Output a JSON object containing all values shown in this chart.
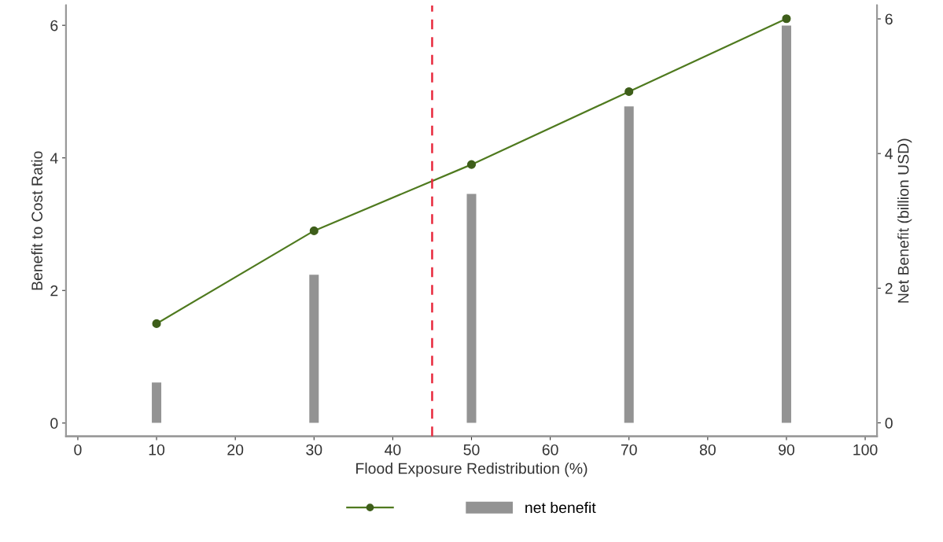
{
  "chart_data": {
    "type": "line",
    "xlabel": "Flood Exposure Redistribution (%)",
    "ylabel": "Benefit to Cost Ratio",
    "y2label": "Net Benefit (billion USD)",
    "x": [
      10,
      30,
      50,
      70,
      90
    ],
    "series": [
      {
        "color": "#4f7a1f",
        "values": [
          1.5,
          2.9,
          3.9,
          5.0,
          6.1
        ],
        "marker": "circle"
      },
      {
        "type": "bar",
        "name": "net benefit",
        "color": "#939393",
        "values": [
          0.6,
          2.2,
          3.4,
          4.7,
          5.9
        ],
        "axis": "y2"
      }
    ],
    "xlim": [
      -1.5,
      101.5
    ],
    "xticks": [
      0,
      10,
      20,
      30,
      40,
      50,
      60,
      70,
      80,
      90,
      100
    ],
    "ylim": [
      -0.2,
      6.3
    ],
    "yticks": [
      0,
      2,
      4,
      6
    ],
    "y2lim": [
      -0.2,
      6.2
    ],
    "y2ticks": [
      0,
      2,
      4,
      6
    ],
    "ref_lines": [
      {
        "axis": "x",
        "value": 45,
        "color": "#e8283c",
        "line_style": "dashed"
      }
    ],
    "grid": false,
    "legend": "bottom"
  }
}
